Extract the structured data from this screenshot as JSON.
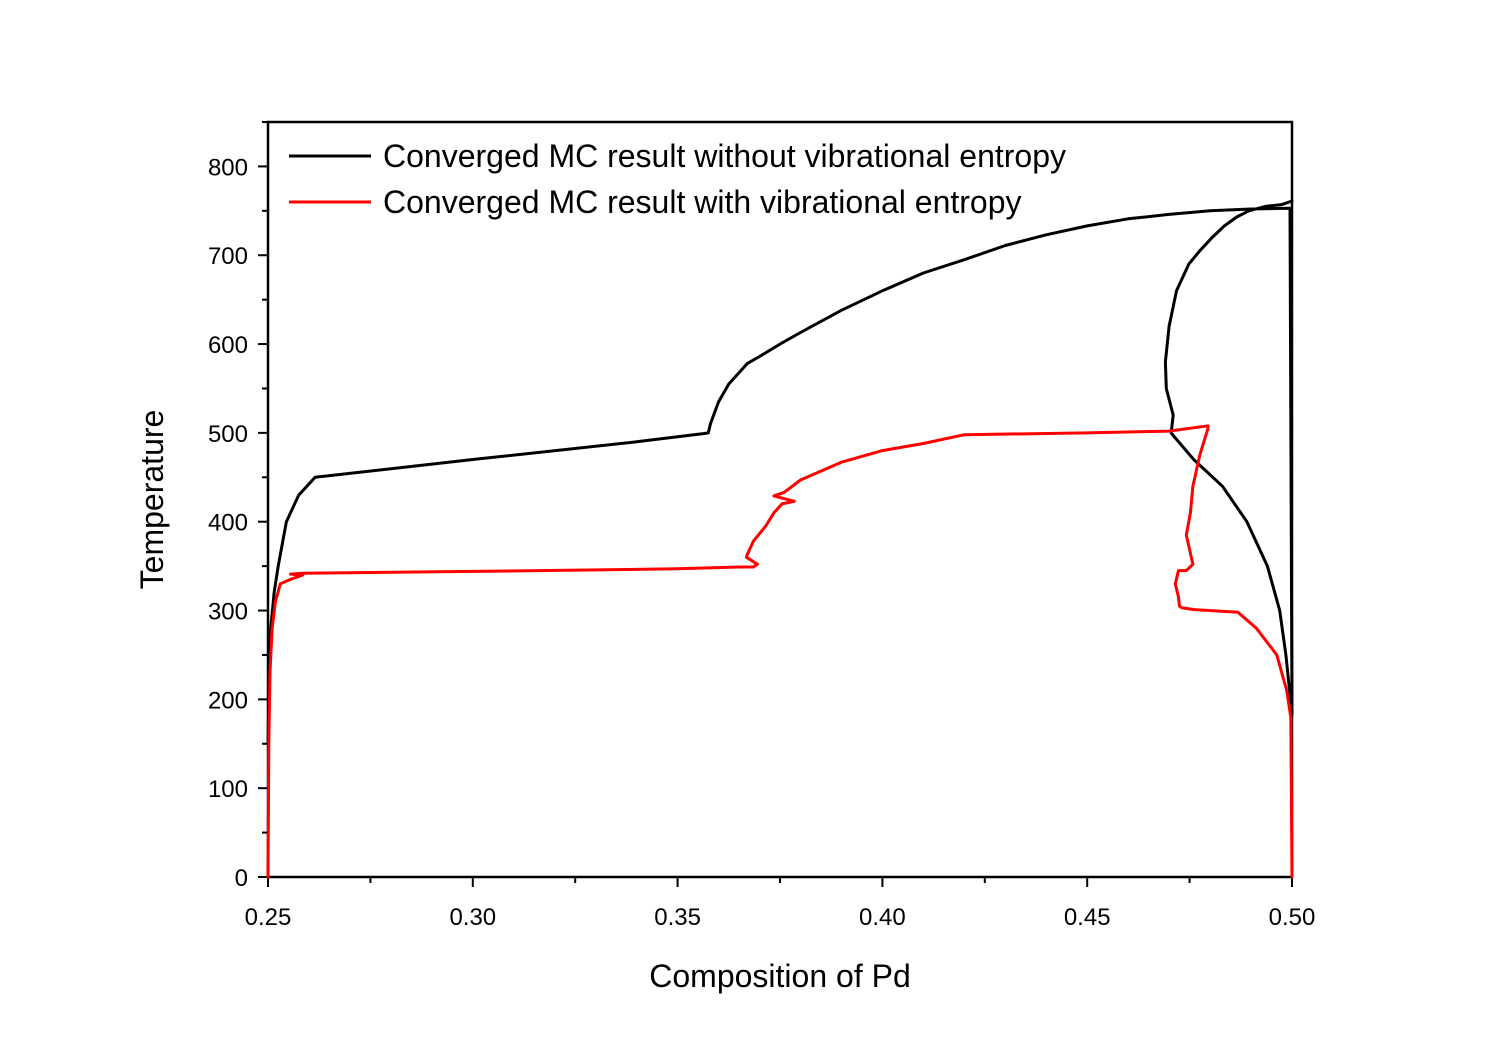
{
  "chart_data": {
    "type": "line",
    "title": "",
    "xlabel": "Composition of Pd",
    "ylabel": "Temperature",
    "xlim": [
      0.25,
      0.5
    ],
    "ylim": [
      0,
      850
    ],
    "xticks": [
      "0.25",
      "0.30",
      "0.35",
      "0.40",
      "0.45",
      "0.50"
    ],
    "xtick_values": [
      0.25,
      0.3,
      0.35,
      0.4,
      0.45,
      0.5
    ],
    "yticks": [
      "0",
      "100",
      "200",
      "300",
      "400",
      "500",
      "600",
      "700",
      "800"
    ],
    "ytick_values": [
      0,
      100,
      200,
      300,
      400,
      500,
      600,
      700,
      800
    ],
    "grid": false,
    "legend_position": "top-left",
    "series": [
      {
        "name": "Converged MC result without vibrational entropy",
        "color": "#000000",
        "x": [
          0.25,
          0.2505,
          0.2515,
          0.2525,
          0.2545,
          0.2575,
          0.2615,
          0.3,
          0.34,
          0.356,
          0.3575,
          0.358,
          0.3588,
          0.36,
          0.3625,
          0.367,
          0.37,
          0.375,
          0.38,
          0.39,
          0.4,
          0.41,
          0.42,
          0.43,
          0.44,
          0.45,
          0.46,
          0.47,
          0.48,
          0.49,
          0.4995,
          0.5,
          0.4985,
          0.497,
          0.494,
          0.489,
          0.483,
          0.476,
          0.471,
          0.4705,
          0.471,
          0.4693,
          0.4691,
          0.47,
          0.4718,
          0.4748,
          0.4775,
          0.4805,
          0.4835,
          0.4865,
          0.4895,
          0.4935,
          0.4975,
          0.5
        ],
        "y": [
          150,
          270,
          320,
          350,
          400,
          430,
          450,
          470,
          490,
          499,
          500,
          510,
          520,
          535,
          555,
          578,
          586,
          600,
          613,
          638,
          660,
          680,
          695,
          711,
          723,
          733,
          741,
          746,
          750,
          752,
          753,
          183,
          250,
          300,
          350,
          400,
          440,
          470,
          497,
          500,
          520,
          550,
          580,
          620,
          660,
          690,
          705,
          720,
          733,
          743,
          750,
          755,
          757,
          761
        ]
      },
      {
        "name": "Converged MC result with vibrational entropy",
        "color": "#ff0000",
        "x": [
          0.25,
          0.2502,
          0.2505,
          0.251,
          0.2518,
          0.253,
          0.2555,
          0.2585,
          0.2555,
          0.2585,
          0.3,
          0.35,
          0.365,
          0.3685,
          0.3695,
          0.3668,
          0.367,
          0.3685,
          0.3715,
          0.3735,
          0.3755,
          0.3785,
          0.3735,
          0.376,
          0.38,
          0.39,
          0.4,
          0.41,
          0.42,
          0.45,
          0.47,
          0.4795,
          0.4795,
          0.4775,
          0.4758,
          0.4752,
          0.4742,
          0.4758,
          0.4742,
          0.4723,
          0.4715,
          0.4723,
          0.4725,
          0.4732,
          0.4762,
          0.4868,
          0.4913,
          0.4963,
          0.4987,
          0.4997,
          0.5
        ],
        "y": [
          0,
          150,
          230,
          280,
          310,
          330,
          335,
          340,
          341,
          342,
          344,
          347,
          349,
          349,
          352,
          360,
          363,
          378,
          395,
          410,
          420,
          423,
          429,
          433,
          447,
          467,
          480,
          488,
          498,
          500,
          502,
          508,
          505,
          475,
          440,
          410,
          385,
          352,
          345,
          345,
          330,
          315,
          305,
          303,
          301,
          298,
          280,
          250,
          210,
          180,
          0
        ]
      }
    ]
  }
}
